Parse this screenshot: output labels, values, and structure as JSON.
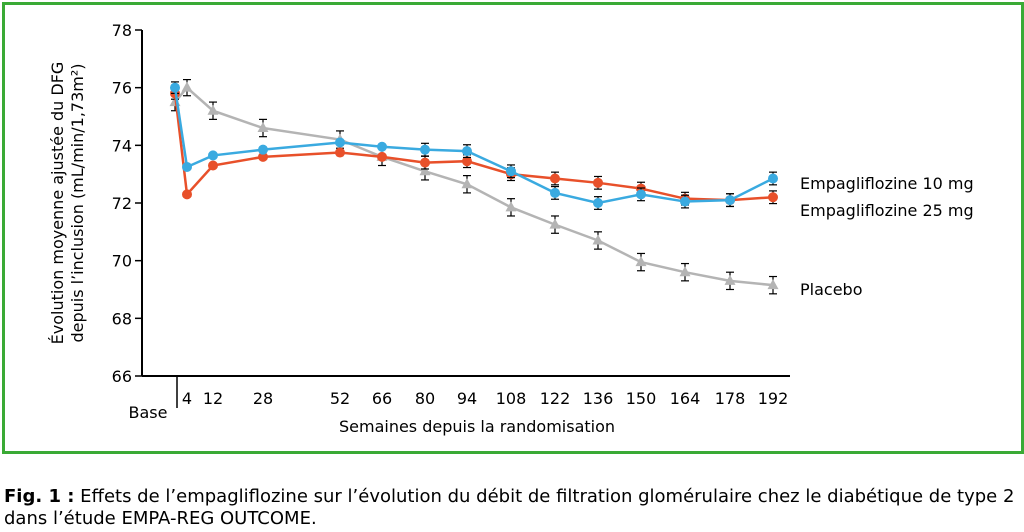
{
  "colors": {
    "frame": "#3aaa35",
    "empa10": "#3aaae0",
    "empa25": "#e8502a",
    "placebo": "#b4b4b4"
  },
  "caption": {
    "label": "Fig. 1 :",
    "line1": " Effets de l’empagliflozine sur l’évolution du débit de filtration glomérulaire chez le diabétique de type 2",
    "line2": "dans l’étude EMPA-REG OUTCOME."
  },
  "chart_data": {
    "type": "line",
    "ylabel_line1": "Évolution moyenne ajustée du DFG",
    "ylabel_line2": "depuis l’inclusion (mL/min/1,73m²)",
    "xlabel": "Semaines depuis la randomisation",
    "base_label": "Base",
    "ylim": [
      66,
      78
    ],
    "yticks": [
      "66",
      "68",
      "70",
      "72",
      "74",
      "76",
      "78"
    ],
    "categories": [
      "4",
      "12",
      "28",
      "52",
      "66",
      "80",
      "94",
      "108",
      "122",
      "136",
      "150",
      "164",
      "178",
      "192"
    ],
    "series": [
      {
        "name": "Empagliflozine 10 mg",
        "marker": "circle",
        "base": 76.0,
        "values": [
          73.25,
          73.65,
          73.85,
          74.1,
          73.95,
          73.85,
          73.8,
          73.1,
          72.35,
          72.0,
          72.3,
          72.05,
          72.1,
          72.85
        ]
      },
      {
        "name": "Empagliflozine 25 mg",
        "marker": "circle",
        "base": 75.8,
        "values": [
          72.3,
          73.3,
          73.6,
          73.75,
          73.6,
          73.4,
          73.45,
          73.0,
          72.85,
          72.7,
          72.5,
          72.15,
          72.1,
          72.2
        ]
      },
      {
        "name": "Placebo",
        "marker": "triangle",
        "base": 75.5,
        "values": [
          76.0,
          75.2,
          74.6,
          74.2,
          73.6,
          73.1,
          72.65,
          71.85,
          71.25,
          70.7,
          69.95,
          69.6,
          69.3,
          69.15
        ]
      }
    ]
  }
}
